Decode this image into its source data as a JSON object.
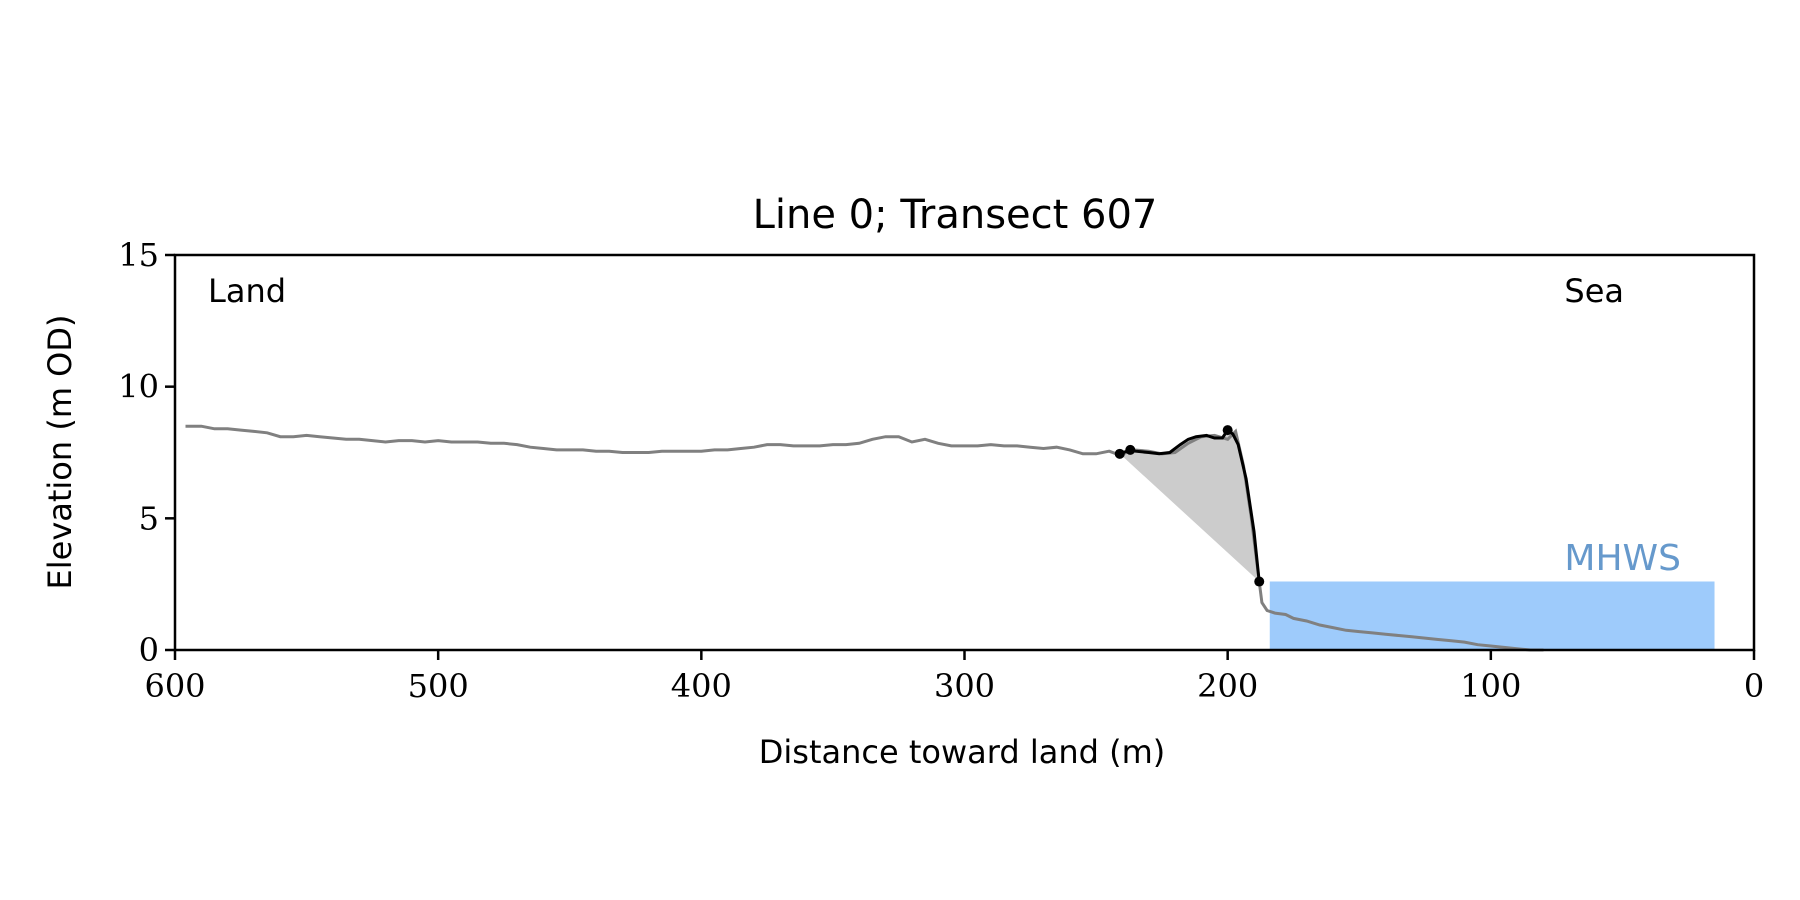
{
  "chart_data": {
    "type": "line",
    "title": "Line 0; Transect 607",
    "xlabel": "Distance toward land (m)",
    "ylabel": "Elevation (m OD)",
    "xlim": [
      600,
      0
    ],
    "ylim": [
      0,
      15
    ],
    "x_ticks": [
      "600",
      "500",
      "400",
      "300",
      "200",
      "100",
      "0"
    ],
    "y_ticks": [
      "0",
      "5",
      "10",
      "15"
    ],
    "grid": false,
    "annotations": {
      "left": "Land",
      "right": "Sea",
      "mhws": "MHWS"
    },
    "mhws": {
      "elevation": 2.6,
      "x_from": 184,
      "x_to": 15,
      "color": "#9ecbfb",
      "label_color": "#6699cc"
    },
    "series": [
      {
        "role": "profile",
        "color": "#808080",
        "x": [
          596,
          590,
          585,
          580,
          575,
          570,
          565,
          560,
          555,
          550,
          545,
          540,
          535,
          530,
          525,
          520,
          515,
          510,
          505,
          500,
          495,
          490,
          485,
          480,
          475,
          470,
          465,
          460,
          455,
          450,
          445,
          440,
          435,
          430,
          425,
          420,
          415,
          410,
          405,
          400,
          395,
          390,
          385,
          380,
          375,
          370,
          365,
          360,
          355,
          350,
          345,
          340,
          335,
          330,
          325,
          320,
          315,
          310,
          305,
          300,
          295,
          290,
          285,
          280,
          275,
          270,
          265,
          260,
          255,
          250,
          245,
          241,
          236,
          230,
          225,
          220,
          215,
          210,
          205,
          200,
          197,
          194,
          191,
          188,
          187,
          185,
          182,
          178,
          175,
          170,
          165,
          160,
          155,
          150,
          145,
          140,
          135,
          130,
          125,
          120,
          115,
          110,
          105,
          100,
          95,
          90,
          85,
          80
        ],
        "y": [
          8.5,
          8.5,
          8.4,
          8.4,
          8.35,
          8.3,
          8.25,
          8.1,
          8.1,
          8.15,
          8.1,
          8.05,
          8.0,
          8.0,
          7.95,
          7.9,
          7.95,
          7.95,
          7.9,
          7.95,
          7.9,
          7.9,
          7.9,
          7.85,
          7.85,
          7.8,
          7.7,
          7.65,
          7.6,
          7.6,
          7.6,
          7.55,
          7.55,
          7.5,
          7.5,
          7.5,
          7.55,
          7.55,
          7.55,
          7.55,
          7.6,
          7.6,
          7.65,
          7.7,
          7.8,
          7.8,
          7.75,
          7.75,
          7.75,
          7.8,
          7.8,
          7.85,
          8.0,
          8.1,
          8.1,
          7.9,
          8.0,
          7.85,
          7.75,
          7.75,
          7.75,
          7.8,
          7.75,
          7.75,
          7.7,
          7.65,
          7.7,
          7.6,
          7.45,
          7.45,
          7.55,
          7.4,
          7.6,
          7.55,
          7.45,
          7.5,
          7.85,
          8.1,
          8.15,
          8.0,
          8.3,
          7.0,
          5.0,
          2.6,
          1.8,
          1.5,
          1.4,
          1.35,
          1.2,
          1.1,
          0.95,
          0.85,
          0.75,
          0.7,
          0.65,
          0.6,
          0.55,
          0.5,
          0.45,
          0.4,
          0.35,
          0.3,
          0.2,
          0.15,
          0.1,
          0.05,
          0.0,
          0.0
        ]
      },
      {
        "role": "dune-crest",
        "color": "#000000",
        "x": [
          241,
          237,
          235,
          230,
          226,
          222,
          218,
          215,
          212,
          208,
          205,
          202,
          200,
          198,
          196,
          193,
          190,
          188
        ],
        "y": [
          7.45,
          7.6,
          7.55,
          7.5,
          7.45,
          7.5,
          7.8,
          8.0,
          8.1,
          8.15,
          8.05,
          8.05,
          8.35,
          8.2,
          7.8,
          6.5,
          4.5,
          2.6
        ]
      }
    ],
    "markers": [
      {
        "x": 241,
        "y": 7.45
      },
      {
        "x": 237,
        "y": 7.6
      },
      {
        "x": 200,
        "y": 8.35
      },
      {
        "x": 188,
        "y": 2.6
      }
    ],
    "shaded_area": {
      "color": "#cccccc"
    }
  }
}
